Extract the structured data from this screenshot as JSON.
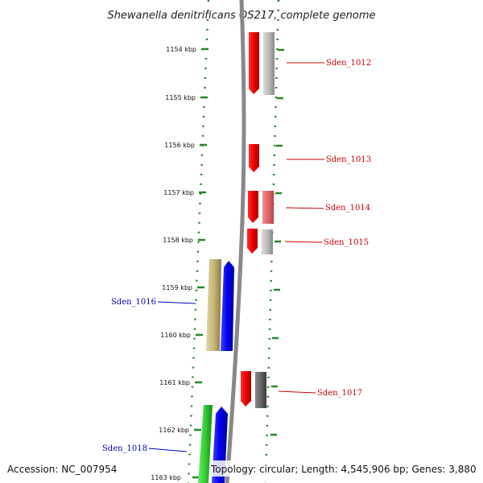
{
  "title": "Shewanella denitrificans OS217, complete genome",
  "footer": {
    "accession": "Accession: NC_007954",
    "topology": "Topology: circular; Length: 4,545,906 bp; Genes: 3,880"
  },
  "ticks": [
    "1154 kbp",
    "1155 kbp",
    "1156 kbp",
    "1157 kbp",
    "1158 kbp",
    "1159 kbp",
    "1160 kbp",
    "1161 kbp",
    "1162 kbp",
    "1163 kbp"
  ],
  "gene_labels": [
    {
      "name": "Sden_1012",
      "color": "#cc0000"
    },
    {
      "name": "Sden_1013",
      "color": "#cc0000"
    },
    {
      "name": "Sden_1014",
      "color": "#cc0000"
    },
    {
      "name": "Sden_1015",
      "color": "#cc0000"
    },
    {
      "name": "Sden_1016",
      "color": "#0000bb"
    },
    {
      "name": "Sden_1017",
      "color": "#cc0000"
    },
    {
      "name": "Sden_1018",
      "color": "#0000bb"
    }
  ],
  "colors": {
    "forward_cds": "#ee0000",
    "forward_pale": "#e87070",
    "pseudo_gray": "#b8b8b8",
    "dark_gray": "#666666",
    "reverse_cds": "#0000ee",
    "olive": "#c8b878",
    "green": "#33cc33",
    "backbone": "#888888",
    "ruler": "#228822"
  }
}
